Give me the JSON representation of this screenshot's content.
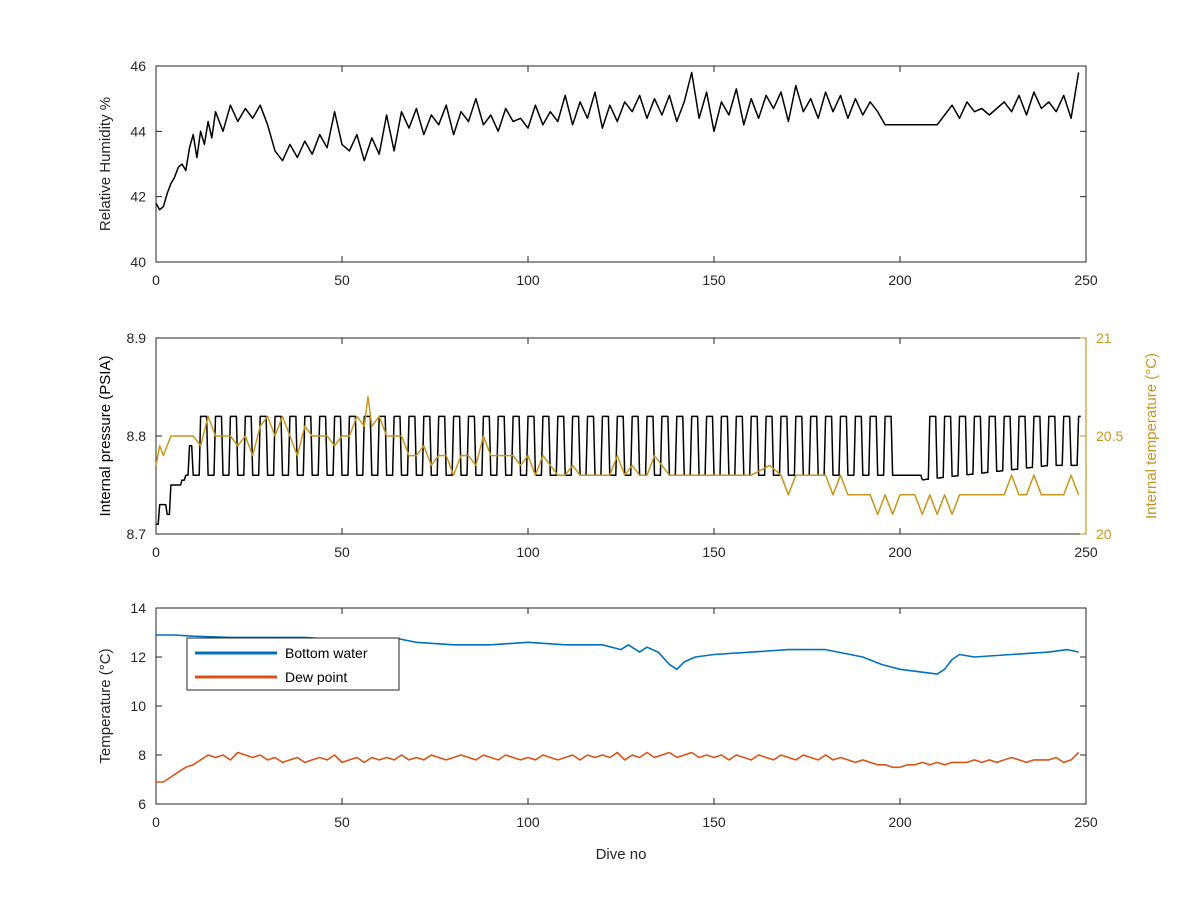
{
  "chart_data": [
    {
      "type": "line",
      "title": "",
      "xlabel": "",
      "ylabel": "Relative Humidity %",
      "xlim": [
        0,
        250
      ],
      "ylim": [
        40,
        46
      ],
      "xticks": [
        "0",
        "50",
        "100",
        "150",
        "200",
        "250"
      ],
      "yticks": [
        "40",
        "42",
        "44",
        "46"
      ],
      "grid": false,
      "series": [
        {
          "color": "#000000",
          "x": [
            0,
            1,
            2,
            3,
            4,
            5,
            6,
            7,
            8,
            9,
            10,
            11,
            12,
            13,
            14,
            15,
            16,
            18,
            20,
            22,
            24,
            26,
            28,
            30,
            32,
            34,
            36,
            38,
            40,
            42,
            44,
            46,
            48,
            50,
            52,
            54,
            56,
            58,
            60,
            62,
            64,
            66,
            68,
            70,
            72,
            74,
            76,
            78,
            80,
            82,
            84,
            86,
            88,
            90,
            92,
            94,
            96,
            98,
            100,
            102,
            104,
            106,
            108,
            110,
            112,
            114,
            116,
            118,
            120,
            122,
            124,
            126,
            128,
            130,
            132,
            134,
            136,
            138,
            140,
            142,
            144,
            146,
            148,
            150,
            152,
            154,
            156,
            158,
            160,
            162,
            164,
            166,
            168,
            170,
            172,
            174,
            176,
            178,
            180,
            182,
            184,
            186,
            188,
            190,
            192,
            194,
            196,
            198,
            200,
            205,
            210,
            212,
            214,
            216,
            218,
            220,
            222,
            224,
            226,
            228,
            230,
            232,
            234,
            236,
            238,
            240,
            242,
            244,
            246,
            248
          ],
          "values": [
            41.8,
            41.6,
            41.7,
            42.1,
            42.4,
            42.6,
            42.9,
            43.0,
            42.8,
            43.5,
            43.9,
            43.2,
            44.0,
            43.6,
            44.3,
            43.8,
            44.6,
            44.0,
            44.8,
            44.3,
            44.7,
            44.4,
            44.8,
            44.2,
            43.4,
            43.1,
            43.6,
            43.2,
            43.7,
            43.3,
            43.9,
            43.5,
            44.6,
            43.6,
            43.4,
            43.9,
            43.1,
            43.8,
            43.3,
            44.5,
            43.4,
            44.6,
            44.1,
            44.7,
            43.9,
            44.5,
            44.2,
            44.8,
            43.9,
            44.6,
            44.3,
            45.0,
            44.2,
            44.5,
            44.0,
            44.7,
            44.3,
            44.4,
            44.1,
            44.8,
            44.2,
            44.6,
            44.3,
            45.1,
            44.2,
            44.9,
            44.4,
            45.2,
            44.1,
            44.8,
            44.3,
            44.9,
            44.6,
            45.1,
            44.4,
            45.0,
            44.5,
            45.1,
            44.3,
            44.9,
            45.8,
            44.4,
            45.2,
            44.0,
            44.9,
            44.5,
            45.3,
            44.2,
            45.0,
            44.4,
            45.1,
            44.7,
            45.2,
            44.3,
            45.4,
            44.6,
            45.0,
            44.4,
            45.2,
            44.6,
            45.1,
            44.4,
            45.0,
            44.5,
            44.9,
            44.6,
            44.2,
            44.2,
            44.2,
            44.2,
            44.2,
            44.5,
            44.8,
            44.4,
            44.9,
            44.6,
            44.7,
            44.5,
            44.7,
            44.9,
            44.6,
            45.1,
            44.5,
            45.2,
            44.7,
            44.9,
            44.6,
            45.1,
            44.4,
            45.8
          ]
        }
      ]
    },
    {
      "type": "line",
      "title": "",
      "xlabel": "",
      "ylabel": "Internal pressure (PSIA)",
      "ylabel_right": "Internal temperature (°C)",
      "xlim": [
        0,
        250
      ],
      "ylim": [
        8.7,
        8.9
      ],
      "ylim_right": [
        20,
        21
      ],
      "xticks": [
        "0",
        "50",
        "100",
        "150",
        "200",
        "250"
      ],
      "yticks": [
        "8.7",
        "8.8",
        "8.9"
      ],
      "yticks_right": [
        "20",
        "20.5",
        "21"
      ],
      "grid": false,
      "series": [
        {
          "axis": "left",
          "color": "#000000",
          "type": "oscillating",
          "x": [
            0,
            1,
            2,
            3,
            4,
            5,
            6,
            8,
            10,
            200,
            205,
            240,
            248
          ],
          "high": [
            8.71,
            8.73,
            8.73,
            8.72,
            8.75,
            8.75,
            8.75,
            8.76,
            8.82,
            8.82,
            8.82,
            8.82,
            8.82
          ],
          "low": [
            8.71,
            8.73,
            8.73,
            8.72,
            8.75,
            8.75,
            8.75,
            8.76,
            8.76,
            8.76,
            8.755,
            8.77,
            8.77
          ],
          "period": 4
        },
        {
          "axis": "right",
          "color": "#C8961E",
          "x": [
            0,
            1,
            2,
            4,
            6,
            8,
            10,
            12,
            14,
            16,
            18,
            20,
            22,
            24,
            26,
            28,
            30,
            32,
            34,
            36,
            38,
            40,
            42,
            44,
            46,
            48,
            50,
            52,
            54,
            56,
            57,
            58,
            60,
            62,
            64,
            66,
            68,
            70,
            72,
            74,
            76,
            78,
            80,
            82,
            84,
            86,
            88,
            90,
            92,
            94,
            96,
            98,
            100,
            102,
            104,
            106,
            108,
            110,
            112,
            114,
            116,
            118,
            120,
            122,
            124,
            126,
            128,
            130,
            132,
            134,
            136,
            138,
            140,
            142,
            160,
            165,
            168,
            170,
            172,
            174,
            176,
            178,
            180,
            182,
            184,
            186,
            188,
            190,
            192,
            194,
            196,
            198,
            200,
            202,
            204,
            206,
            208,
            210,
            212,
            214,
            216,
            218,
            220,
            222,
            224,
            226,
            228,
            230,
            232,
            234,
            236,
            238,
            240,
            242,
            244,
            246,
            248
          ],
          "values": [
            20.35,
            20.45,
            20.4,
            20.5,
            20.5,
            20.5,
            20.5,
            20.45,
            20.6,
            20.5,
            20.5,
            20.5,
            20.45,
            20.5,
            20.4,
            20.55,
            20.6,
            20.5,
            20.6,
            20.5,
            20.4,
            20.55,
            20.5,
            20.5,
            20.5,
            20.45,
            20.5,
            20.5,
            20.6,
            20.55,
            20.7,
            20.55,
            20.6,
            20.5,
            20.5,
            20.5,
            20.4,
            20.4,
            20.45,
            20.35,
            20.4,
            20.4,
            20.3,
            20.4,
            20.4,
            20.35,
            20.5,
            20.4,
            20.4,
            20.4,
            20.4,
            20.35,
            20.4,
            20.3,
            20.4,
            20.35,
            20.3,
            20.3,
            20.35,
            20.3,
            20.3,
            20.3,
            20.3,
            20.3,
            20.4,
            20.3,
            20.35,
            20.3,
            20.3,
            20.4,
            20.35,
            20.3,
            20.3,
            20.3,
            20.3,
            20.35,
            20.3,
            20.2,
            20.3,
            20.3,
            20.3,
            20.3,
            20.3,
            20.2,
            20.3,
            20.2,
            20.2,
            20.2,
            20.2,
            20.1,
            20.2,
            20.1,
            20.2,
            20.2,
            20.2,
            20.1,
            20.2,
            20.1,
            20.2,
            20.1,
            20.2,
            20.2,
            20.2,
            20.2,
            20.2,
            20.2,
            20.2,
            20.3,
            20.2,
            20.2,
            20.3,
            20.2,
            20.2,
            20.2,
            20.2,
            20.3,
            20.2
          ]
        }
      ]
    },
    {
      "type": "line",
      "title": "",
      "xlabel": "Dive no",
      "ylabel": "Temperature (°C)",
      "xlim": [
        0,
        250
      ],
      "ylim": [
        6,
        14
      ],
      "xticks": [
        "0",
        "50",
        "100",
        "150",
        "200",
        "250"
      ],
      "yticks": [
        "6",
        "8",
        "10",
        "12",
        "14"
      ],
      "grid": false,
      "legend_position": "top-left",
      "series": [
        {
          "name": "Bottom water",
          "color": "#0072BD",
          "x": [
            0,
            5,
            10,
            20,
            30,
            40,
            50,
            60,
            65,
            70,
            80,
            90,
            100,
            110,
            120,
            125,
            127,
            130,
            132,
            135,
            138,
            140,
            142,
            145,
            150,
            160,
            170,
            180,
            190,
            195,
            200,
            205,
            210,
            212,
            214,
            216,
            220,
            230,
            240,
            245,
            248
          ],
          "values": [
            12.9,
            12.9,
            12.85,
            12.8,
            12.8,
            12.8,
            12.7,
            12.7,
            12.75,
            12.6,
            12.5,
            12.5,
            12.6,
            12.5,
            12.5,
            12.3,
            12.5,
            12.2,
            12.4,
            12.2,
            11.7,
            11.5,
            11.8,
            12.0,
            12.1,
            12.2,
            12.3,
            12.3,
            12.0,
            11.7,
            11.5,
            11.4,
            11.3,
            11.5,
            11.9,
            12.1,
            12.0,
            12.1,
            12.2,
            12.3,
            12.2
          ]
        },
        {
          "name": "Dew point",
          "color": "#D95319",
          "x": [
            0,
            2,
            4,
            6,
            8,
            10,
            12,
            14,
            16,
            18,
            20,
            22,
            24,
            26,
            28,
            30,
            32,
            34,
            36,
            38,
            40,
            42,
            44,
            46,
            48,
            50,
            52,
            54,
            56,
            58,
            60,
            62,
            64,
            66,
            68,
            70,
            72,
            74,
            76,
            78,
            80,
            82,
            84,
            86,
            88,
            90,
            92,
            94,
            96,
            98,
            100,
            102,
            104,
            106,
            108,
            110,
            112,
            114,
            116,
            118,
            120,
            122,
            124,
            126,
            128,
            130,
            132,
            134,
            136,
            138,
            140,
            142,
            144,
            146,
            148,
            150,
            152,
            154,
            156,
            158,
            160,
            162,
            164,
            166,
            168,
            170,
            172,
            174,
            176,
            178,
            180,
            182,
            184,
            186,
            188,
            190,
            192,
            194,
            196,
            198,
            200,
            202,
            204,
            206,
            208,
            210,
            212,
            214,
            216,
            218,
            220,
            222,
            224,
            226,
            228,
            230,
            232,
            234,
            236,
            238,
            240,
            242,
            244,
            246,
            248
          ],
          "values": [
            6.9,
            6.9,
            7.1,
            7.3,
            7.5,
            7.6,
            7.8,
            8.0,
            7.9,
            8.0,
            7.8,
            8.1,
            8.0,
            7.9,
            8.0,
            7.8,
            7.9,
            7.7,
            7.8,
            7.9,
            7.7,
            7.8,
            7.9,
            7.8,
            8.0,
            7.7,
            7.8,
            7.9,
            7.7,
            7.9,
            7.8,
            7.9,
            7.8,
            8.0,
            7.8,
            7.9,
            7.8,
            8.0,
            7.9,
            7.8,
            7.9,
            8.0,
            7.9,
            7.8,
            8.0,
            7.9,
            7.8,
            8.0,
            7.9,
            7.8,
            7.9,
            7.8,
            8.0,
            7.9,
            7.8,
            7.9,
            8.0,
            7.8,
            8.0,
            7.9,
            8.0,
            7.9,
            8.1,
            7.8,
            8.0,
            7.9,
            8.1,
            7.9,
            8.0,
            8.1,
            7.9,
            8.0,
            8.1,
            7.9,
            8.0,
            7.9,
            8.0,
            7.8,
            8.0,
            7.9,
            7.8,
            8.0,
            7.9,
            7.8,
            8.0,
            7.9,
            7.8,
            8.0,
            7.9,
            7.8,
            8.0,
            7.8,
            7.9,
            7.8,
            7.7,
            7.8,
            7.7,
            7.6,
            7.6,
            7.5,
            7.5,
            7.6,
            7.6,
            7.7,
            7.6,
            7.7,
            7.6,
            7.7,
            7.7,
            7.7,
            7.8,
            7.7,
            7.8,
            7.7,
            7.8,
            7.9,
            7.8,
            7.7,
            7.8,
            7.8,
            7.8,
            7.9,
            7.7,
            7.8,
            8.1
          ]
        }
      ]
    }
  ]
}
